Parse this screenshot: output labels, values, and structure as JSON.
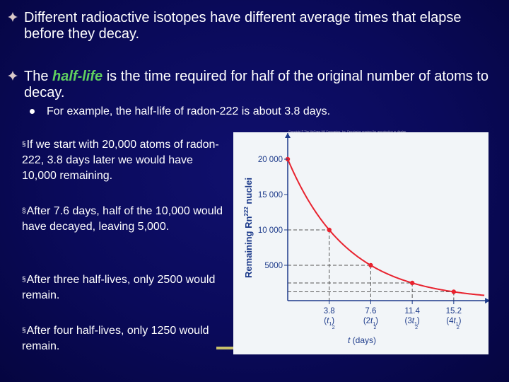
{
  "bullets": [
    {
      "text": "Different radioactive isotopes have different average times that elapse before they decay."
    },
    {
      "text_before": "The ",
      "highlight": "half-life",
      "text_after": " is the time required for half of the original number of atoms to decay."
    }
  ],
  "sub_bullet": "For example, the half-life of radon-222 is about 3.8 days.",
  "paragraphs": [
    "If we start with 20,000 atoms of radon-222, 3.8 days later we would have 10,000 remaining.",
    "After 7.6 days, half of the 10,000 would have decayed, leaving 5,000.",
    "After three half-lives, only 2500 would remain.",
    "After four half-lives, only 1250 would remain."
  ],
  "paragraph_marker": "§",
  "copyright": "Copyright © The McGraw-Hill Companies, Inc. Permission required for reproduction or display.",
  "colors": {
    "background": "#0a0a5a",
    "highlight": "#5fcf5f",
    "bullet": "#d8c8c8",
    "figure_bg": "#f2f5f8",
    "curve": "#e8232f"
  },
  "chart_data": {
    "type": "line",
    "xlabel": "t (days)",
    "ylabel": "Remaining Rn-222 nuclei",
    "ylabel_parts": {
      "prefix": "Remaining Rn",
      "superscript": "222",
      "suffix": " nuclei"
    },
    "ylim": [
      0,
      22500
    ],
    "xlim": [
      0,
      18
    ],
    "y_ticks": [
      {
        "value": 20000,
        "label": "20 000"
      },
      {
        "value": 15000,
        "label": "15 000"
      },
      {
        "value": 10000,
        "label": "10 000"
      },
      {
        "value": 5000,
        "label": "5000"
      }
    ],
    "x_ticks": [
      {
        "value": 3.8,
        "label": "3.8",
        "coef": "",
        "sub": "1",
        "sub2": "2"
      },
      {
        "value": 7.6,
        "label": "7.6",
        "coef": "2",
        "sub": "1",
        "sub2": "2"
      },
      {
        "value": 11.4,
        "label": "11.4",
        "coef": "3",
        "sub": "1",
        "sub2": "2"
      },
      {
        "value": 15.2,
        "label": "15.2",
        "coef": "4",
        "sub": "1",
        "sub2": "2"
      }
    ],
    "points": [
      {
        "x": 0,
        "y": 20000
      },
      {
        "x": 3.8,
        "y": 10000
      },
      {
        "x": 7.6,
        "y": 5000
      },
      {
        "x": 11.4,
        "y": 2500
      },
      {
        "x": 15.2,
        "y": 1250
      }
    ],
    "half_life": 3.8,
    "initial": 20000,
    "grid": false,
    "guide_lines": "dashed"
  }
}
